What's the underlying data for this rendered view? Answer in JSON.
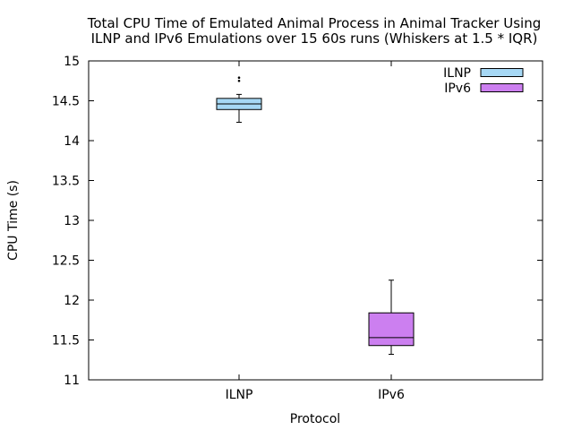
{
  "chart_data": {
    "type": "box",
    "title_lines": [
      "Total CPU Time of Emulated Animal Process in Animal Tracker Using",
      "ILNP and IPv6 Emulations over 15 60s runs (Whiskers at 1.5 * IQR)"
    ],
    "xlabel": "Protocol",
    "ylabel": "CPU Time (s)",
    "ylim": [
      11,
      15
    ],
    "yticks": [
      "11",
      "11.5",
      "12",
      "12.5",
      "13",
      "13.5",
      "14",
      "14.5",
      "15"
    ],
    "categories": [
      "ILNP",
      "IPv6"
    ],
    "legend_position": "top-right",
    "series": [
      {
        "name": "ILNP",
        "color": "#a6d8f5",
        "whisker_low": 14.23,
        "q1": 14.39,
        "median": 14.46,
        "q3": 14.53,
        "whisker_high": 14.58,
        "outliers": [
          14.75,
          14.79
        ]
      },
      {
        "name": "IPv6",
        "color": "#cc7ff0",
        "whisker_low": 11.32,
        "q1": 11.43,
        "median": 11.53,
        "q3": 11.84,
        "whisker_high": 12.25,
        "outliers": []
      }
    ]
  }
}
